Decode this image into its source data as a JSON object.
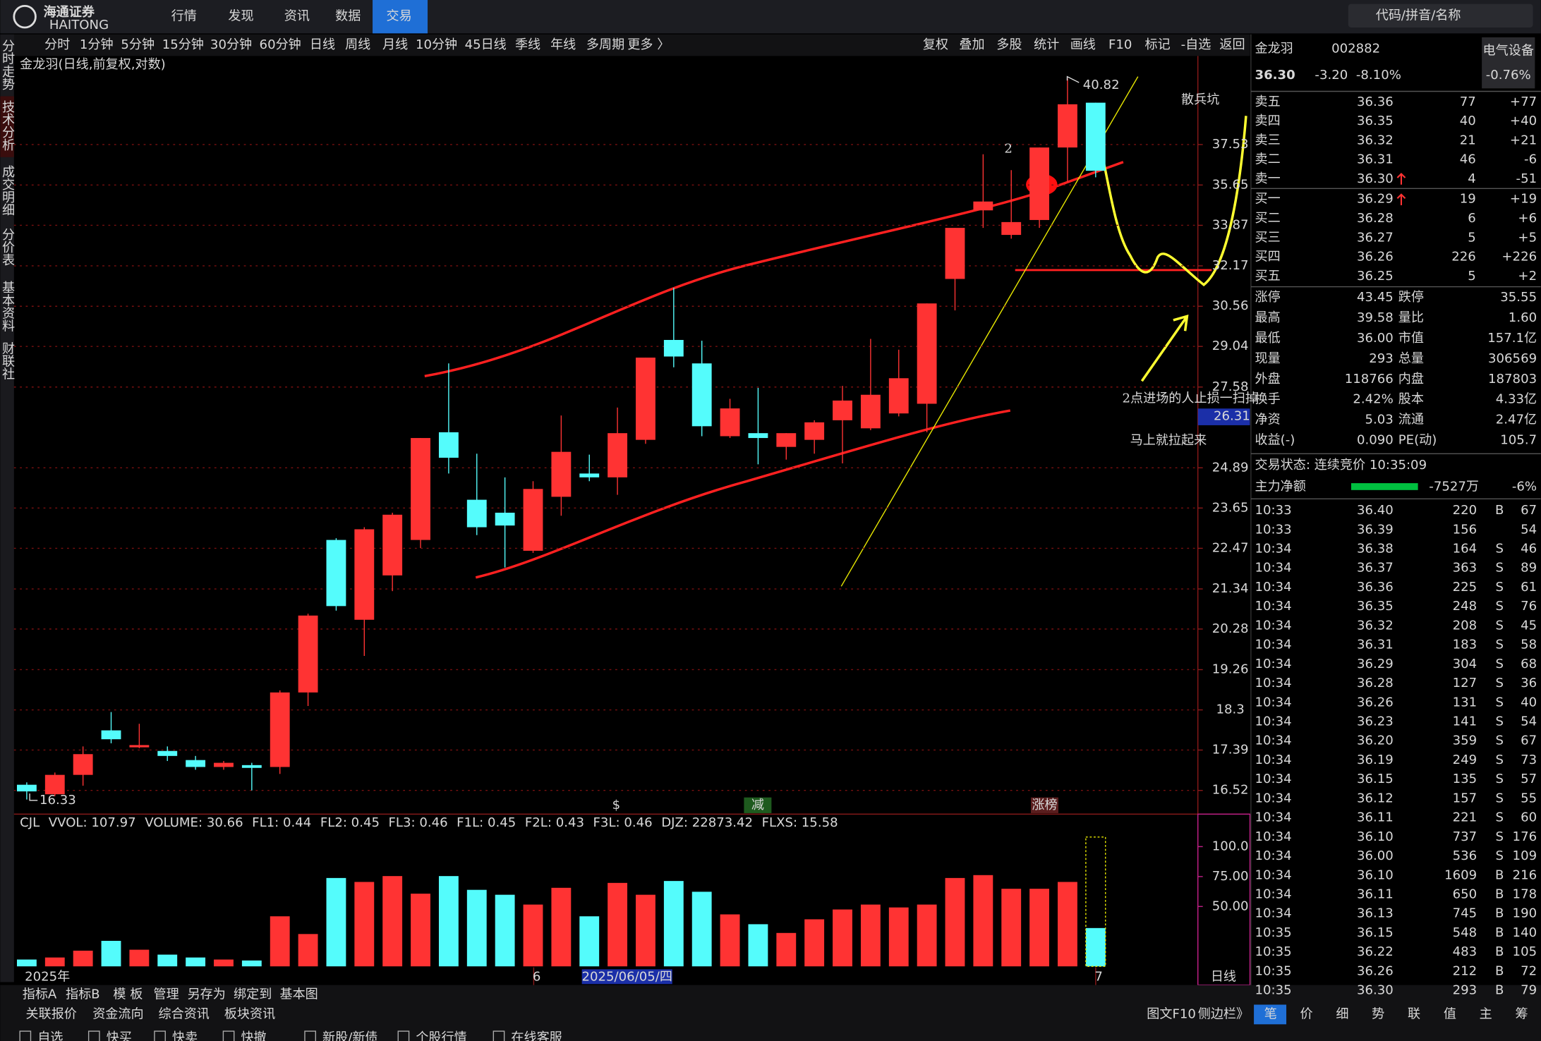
{
  "header": {
    "brand": "海通证券",
    "brand_en": "HAITONG",
    "nav": [
      "行情",
      "发现",
      "资讯",
      "数据",
      "交易"
    ],
    "search_placeholder": "代码/拼音/名称"
  },
  "side_tabs": [
    "分时走势",
    "技术分析",
    "成交明细",
    "分价表",
    "基本资料",
    "财联社"
  ],
  "toolbar": {
    "periods": [
      "分时",
      "1分钟",
      "5分钟",
      "15分钟",
      "30分钟",
      "60分钟",
      "日线",
      "周线",
      "月线",
      "10分钟",
      "45日线",
      "季线",
      "年线",
      "多周期",
      "更多 〉"
    ],
    "tools": [
      "复权",
      "叠加",
      "多股",
      "统计",
      "画线",
      "F10",
      "标记",
      "-自选",
      "返回"
    ]
  },
  "kline": {
    "type": "candlestick",
    "title": "金龙羽(日线,前复权,对数)",
    "log_scale": true,
    "grid": true,
    "up_color": "#ff3333",
    "down_color": "#54fcfc",
    "ylim": [
      16.05,
      42.0
    ],
    "yticks": [
      16.52,
      17.39,
      18.3,
      19.26,
      20.28,
      21.34,
      22.47,
      23.65,
      24.89,
      27.58,
      29.04,
      30.56,
      32.17,
      33.87,
      35.65,
      37.53
    ],
    "candles": [
      {
        "o": 16.64,
        "h": 16.69,
        "l": 16.33,
        "c": 16.5
      },
      {
        "o": 16.44,
        "h": 16.9,
        "l": 16.4,
        "c": 16.85
      },
      {
        "o": 16.85,
        "h": 17.47,
        "l": 16.62,
        "c": 17.3
      },
      {
        "o": 17.83,
        "h": 18.25,
        "l": 17.54,
        "c": 17.63
      },
      {
        "o": 17.45,
        "h": 17.98,
        "l": 17.43,
        "c": 17.5
      },
      {
        "o": 17.37,
        "h": 17.47,
        "l": 17.15,
        "c": 17.26
      },
      {
        "o": 17.17,
        "h": 17.26,
        "l": 16.96,
        "c": 17.02
      },
      {
        "o": 17.02,
        "h": 17.15,
        "l": 16.96,
        "c": 17.11
      },
      {
        "o": 17.06,
        "h": 17.11,
        "l": 16.52,
        "c": 17.0
      },
      {
        "o": 17.02,
        "h": 18.76,
        "l": 16.87,
        "c": 18.71
      },
      {
        "o": 18.71,
        "h": 20.68,
        "l": 18.39,
        "c": 20.63
      },
      {
        "o": 22.71,
        "h": 22.76,
        "l": 20.76,
        "c": 20.88
      },
      {
        "o": 20.52,
        "h": 23.08,
        "l": 19.6,
        "c": 23.02
      },
      {
        "o": 21.71,
        "h": 23.51,
        "l": 21.28,
        "c": 23.45
      },
      {
        "o": 22.71,
        "h": 25.85,
        "l": 22.48,
        "c": 25.85
      },
      {
        "o": 26.04,
        "h": 28.42,
        "l": 24.71,
        "c": 25.21
      },
      {
        "o": 23.9,
        "h": 25.34,
        "l": 22.85,
        "c": 23.08
      },
      {
        "o": 23.51,
        "h": 24.59,
        "l": 21.93,
        "c": 23.13
      },
      {
        "o": 22.4,
        "h": 24.47,
        "l": 22.34,
        "c": 24.23
      },
      {
        "o": 23.99,
        "h": 26.6,
        "l": 23.42,
        "c": 25.4
      },
      {
        "o": 24.71,
        "h": 25.31,
        "l": 24.47,
        "c": 24.59
      },
      {
        "o": 24.59,
        "h": 26.87,
        "l": 24.05,
        "c": 26.01
      },
      {
        "o": 25.79,
        "h": 28.63,
        "l": 25.66,
        "c": 28.63
      },
      {
        "o": 29.28,
        "h": 31.28,
        "l": 28.28,
        "c": 28.67
      },
      {
        "o": 28.42,
        "h": 29.25,
        "l": 25.91,
        "c": 26.24
      },
      {
        "o": 25.91,
        "h": 27.17,
        "l": 25.85,
        "c": 26.84
      },
      {
        "o": 26.01,
        "h": 27.55,
        "l": 25.0,
        "c": 25.85
      },
      {
        "o": 25.56,
        "h": 26.01,
        "l": 25.15,
        "c": 26.01
      },
      {
        "o": 25.79,
        "h": 26.44,
        "l": 25.34,
        "c": 26.37
      },
      {
        "o": 26.44,
        "h": 27.62,
        "l": 25.03,
        "c": 27.11
      },
      {
        "o": 26.17,
        "h": 29.32,
        "l": 26.11,
        "c": 27.31
      },
      {
        "o": 26.67,
        "h": 28.92,
        "l": 26.57,
        "c": 27.89
      },
      {
        "o": 27.0,
        "h": 30.67,
        "l": 26.04,
        "c": 30.67
      },
      {
        "o": 31.64,
        "h": 33.76,
        "l": 30.4,
        "c": 33.76
      },
      {
        "o": 34.52,
        "h": 37.07,
        "l": 33.76,
        "c": 34.91
      },
      {
        "o": 33.46,
        "h": 36.33,
        "l": 33.3,
        "c": 34.01
      },
      {
        "o": 34.1,
        "h": 37.39,
        "l": 33.76,
        "c": 37.39
      },
      {
        "o": 37.39,
        "h": 40.82,
        "l": 35.79,
        "c": 39.5
      },
      {
        "o": 39.58,
        "h": 39.58,
        "l": 36.0,
        "c": 36.3
      }
    ],
    "cursor_price": "26.31",
    "markers": [
      "$",
      "减",
      "涨榜"
    ],
    "annotations": {
      "pit": "散兵坑",
      "point": "2",
      "note1": "2点进场的人止损一扫掉",
      "note2": "马上就拉起来"
    }
  },
  "volume": {
    "type": "bar",
    "legend": [
      {
        "text": "CJL",
        "color": "#cccccc"
      },
      {
        "text": "VVOL: 107.97",
        "color": "#ffffff"
      },
      {
        "text": "VOLUME: 30.66",
        "color": "#ffff54"
      },
      {
        "text": "FL1: 0.44",
        "color": "#ffffff"
      },
      {
        "text": "FL2: 0.45",
        "color": "#ffffff"
      },
      {
        "text": "FL3: 0.46",
        "color": "#ff3333"
      },
      {
        "text": "F1L: 0.45",
        "color": "#ffffff"
      },
      {
        "text": "F2L: 0.43",
        "color": "#ffffff"
      },
      {
        "text": "F3L: 0.46",
        "color": "#ff3333"
      },
      {
        "text": "DJZ: 22873.42",
        "color": "#ffffff"
      },
      {
        "text": "FLXS: 15.58",
        "color": "#ff44ff"
      }
    ],
    "ylim": [
      0,
      114
    ],
    "yticks": [
      {
        "value": 50,
        "label": "50.00"
      },
      {
        "value": 75,
        "label": "75.00"
      },
      {
        "value": 100,
        "label": "100.0"
      }
    ],
    "values": [
      5.7,
      7.4,
      13.1,
      21.3,
      13.9,
      9.8,
      7.4,
      5.7,
      4.9,
      41.8,
      27.0,
      73.8,
      70.5,
      75.4,
      60.7,
      75.4,
      63.9,
      59.8,
      51.6,
      65.6,
      41.8,
      69.7,
      59.8,
      71.3,
      62.3,
      43.4,
      35.2,
      27.9,
      39.3,
      47.5,
      51.6,
      49.2,
      51.6,
      73.8,
      76.2,
      64.8,
      64.8,
      70.5,
      32.0
    ],
    "projected": 107.97
  },
  "x_axis": {
    "labels": [
      "2025年",
      "6",
      "2025/06/05/四",
      "7"
    ],
    "period": "日线"
  },
  "quote": {
    "name": "金龙羽",
    "code": "002882",
    "sector": "电气设备",
    "sector_change": "-0.76%",
    "price": "36.30",
    "change": "-3.20",
    "change_pct": "-8.10%"
  },
  "order_book": {
    "sell": [
      [
        "卖五",
        "36.36",
        "77",
        "+77"
      ],
      [
        "卖四",
        "36.35",
        "40",
        "+40"
      ],
      [
        "卖三",
        "36.32",
        "21",
        "+21"
      ],
      [
        "卖二",
        "36.31",
        "46",
        "-6"
      ],
      [
        "卖一",
        "36.30",
        "4",
        "-51"
      ]
    ],
    "buy": [
      [
        "买一",
        "36.29",
        "19",
        "+19"
      ],
      [
        "买二",
        "36.28",
        "6",
        "+6"
      ],
      [
        "买三",
        "36.27",
        "5",
        "+5"
      ],
      [
        "买四",
        "36.26",
        "226",
        "+226"
      ],
      [
        "买五",
        "36.25",
        "5",
        "+2"
      ]
    ]
  },
  "stats": [
    [
      "涨停",
      "43.45",
      "#ff3333",
      "跌停",
      "35.55",
      "#00e600"
    ],
    [
      "最高",
      "39.58",
      "#ff3333",
      "量比",
      "1.60",
      "#ff3333"
    ],
    [
      "最低",
      "36.00",
      "#00e600",
      "市值",
      "157.1亿",
      "#ffffff"
    ],
    [
      "现量",
      "293",
      "#ff3333",
      "总量",
      "306569",
      "#ffffff"
    ],
    [
      "外盘",
      "118766",
      "#ff3333",
      "内盘",
      "187803",
      "#00e600"
    ],
    [
      "换手",
      "2.42%",
      "#ffffff",
      "股本",
      "4.33亿",
      "#ffffff"
    ],
    [
      "净资",
      "5.03",
      "#ffffff",
      "流通",
      "2.47亿",
      "#ffffff"
    ],
    [
      "收益(-)",
      "0.090",
      "#ffffff",
      "PE(动)",
      "105.7",
      "#ffffff"
    ]
  ],
  "status": {
    "label": "交易状态: 连续竞价 10:35:09",
    "main_flow": "主力净额",
    "flow_value": "-7527万",
    "flow_pct": "-6%"
  },
  "trades": [
    {
      "t": "10:33",
      "p": "36.40",
      "v": 220,
      "d": "B",
      "n": "67"
    },
    {
      "t": "10:33",
      "p": "36.39",
      "v": 156,
      "n": "54"
    },
    {
      "t": "10:34",
      "p": "36.38",
      "v": 164,
      "d": "S",
      "n": "46"
    },
    {
      "t": "10:34",
      "p": "36.37",
      "v": 363,
      "d": "S",
      "n": "89"
    },
    {
      "t": "10:34",
      "p": "36.36",
      "v": 225,
      "d": "S",
      "n": "61"
    },
    {
      "t": "10:34",
      "p": "36.35",
      "v": 248,
      "d": "S",
      "n": "76"
    },
    {
      "t": "10:34",
      "p": "36.32",
      "v": 208,
      "d": "S",
      "n": "45"
    },
    {
      "t": "10:34",
      "p": "36.31",
      "v": 183,
      "d": "S",
      "n": "58"
    },
    {
      "t": "10:34",
      "p": "36.29",
      "v": 304,
      "d": "S",
      "n": "68"
    },
    {
      "t": "10:34",
      "p": "36.28",
      "v": 127,
      "d": "S",
      "n": "36"
    },
    {
      "t": "10:34",
      "p": "36.26",
      "v": 131,
      "d": "S",
      "n": "40"
    },
    {
      "t": "10:34",
      "p": "36.23",
      "v": 141,
      "d": "S",
      "n": "54"
    },
    {
      "t": "10:34",
      "p": "36.20",
      "v": 359,
      "d": "S",
      "n": "67"
    },
    {
      "t": "10:34",
      "p": "36.19",
      "v": 249,
      "d": "S",
      "n": "73"
    },
    {
      "t": "10:34",
      "p": "36.15",
      "v": 135,
      "d": "S",
      "n": "57"
    },
    {
      "t": "10:34",
      "p": "36.12",
      "v": 157,
      "d": "S",
      "n": "55"
    },
    {
      "t": "10:34",
      "p": "36.11",
      "v": 221,
      "d": "S",
      "n": "60"
    },
    {
      "t": "10:34",
      "p": "36.10",
      "v": 737,
      "d": "S",
      "n": "176"
    },
    {
      "t": "10:34",
      "p": "36.00",
      "v": 536,
      "d": "S",
      "n": "109"
    },
    {
      "t": "10:34",
      "p": "36.10",
      "v": 1609,
      "d": "B",
      "n": "216"
    },
    {
      "t": "10:34",
      "p": "36.11",
      "v": 650,
      "d": "B",
      "n": "178"
    },
    {
      "t": "10:34",
      "p": "36.13",
      "v": 745,
      "d": "B",
      "n": "190"
    },
    {
      "t": "10:35",
      "p": "36.15",
      "v": 548,
      "d": "B",
      "n": "140"
    },
    {
      "t": "10:35",
      "p": "36.22",
      "v": 483,
      "d": "B",
      "n": "105"
    },
    {
      "t": "10:35",
      "p": "36.26",
      "v": 212,
      "d": "B",
      "n": "72"
    },
    {
      "t": "10:35",
      "p": "36.30",
      "v": 293,
      "d": "B",
      "n": "79"
    }
  ],
  "bottom": {
    "indicator_bar": [
      "指标A",
      "指标B",
      "模 板",
      "管理",
      "另存为",
      "绑定到",
      "基本图"
    ],
    "info_bar": [
      "关联报价",
      "资金流向",
      "综合资讯",
      "板块资讯"
    ],
    "f10": "图文F10",
    "sidebar": "侧边栏》",
    "panel_tabs": [
      "笔",
      "价",
      "细",
      "势",
      "联",
      "值",
      "主",
      "筹"
    ],
    "actions": [
      "自选",
      "快买",
      "快卖",
      "快撤",
      "新股/新债",
      "个股行情",
      "在线客服"
    ]
  }
}
